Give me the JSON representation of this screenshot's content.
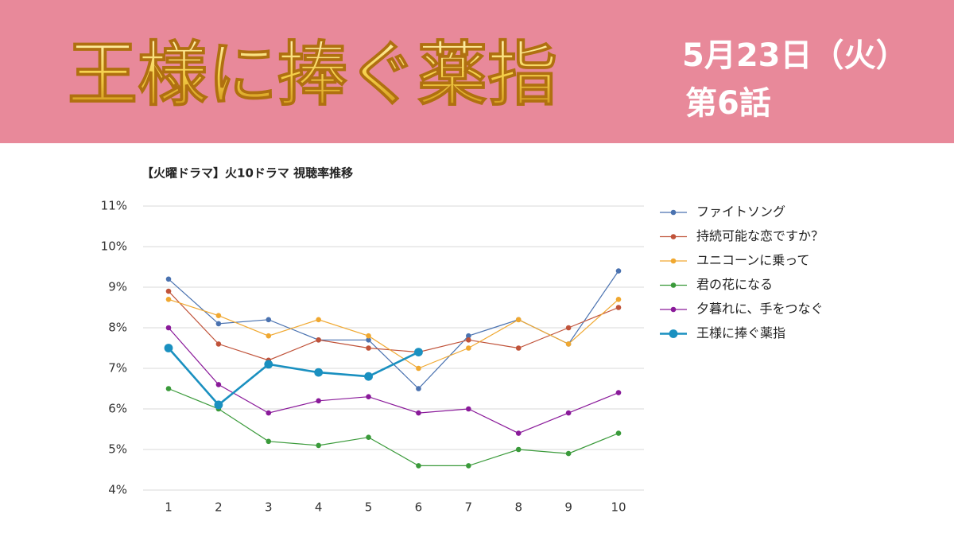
{
  "header": {
    "title": "王様に捧ぐ薬指",
    "date": "5月23日（火）",
    "episode": "第6話"
  },
  "chart_data": {
    "type": "line",
    "title": "【火曜ドラマ】火10ドラマ 視聴率推移",
    "categories": [
      "1",
      "2",
      "3",
      "4",
      "5",
      "6",
      "7",
      "8",
      "9",
      "10"
    ],
    "ylim": [
      4,
      11
    ],
    "yticks": [
      {
        "value": 4,
        "label": "4%"
      },
      {
        "value": 5,
        "label": "5%"
      },
      {
        "value": 6,
        "label": "6%"
      },
      {
        "value": 7,
        "label": "7%"
      },
      {
        "value": 8,
        "label": "8%"
      },
      {
        "value": 9,
        "label": "9%"
      },
      {
        "value": 10,
        "label": "10%"
      },
      {
        "value": 11,
        "label": "11%"
      }
    ],
    "grid": true,
    "legend": "right",
    "series": [
      {
        "name": "ファイトソング",
        "color": "#4a72b0",
        "line_width": 1.2,
        "values": [
          9.2,
          8.1,
          8.2,
          7.7,
          7.7,
          6.5,
          7.8,
          8.2,
          7.6,
          9.4
        ]
      },
      {
        "name": "持続可能な恋ですか？",
        "color": "#c0533a",
        "line_width": 1.2,
        "values": [
          8.9,
          7.6,
          7.2,
          7.7,
          7.5,
          7.4,
          7.7,
          7.5,
          8.0,
          8.5
        ]
      },
      {
        "name": "ユニコーンに乗って",
        "color": "#f0a830",
        "line_width": 1.2,
        "values": [
          8.7,
          8.3,
          7.8,
          8.2,
          7.8,
          7.0,
          7.5,
          8.2,
          7.6,
          8.7
        ]
      },
      {
        "name": "君の花になる",
        "color": "#3a9a3a",
        "line_width": 1.2,
        "values": [
          6.5,
          6.0,
          5.2,
          5.1,
          5.3,
          4.6,
          4.6,
          5.0,
          4.9,
          5.4
        ]
      },
      {
        "name": "夕暮れに、手をつなぐ",
        "color": "#8a1a9a",
        "line_width": 1.2,
        "values": [
          8.0,
          6.6,
          5.9,
          6.2,
          6.3,
          5.9,
          6.0,
          5.4,
          5.9,
          6.4
        ]
      },
      {
        "name": "王様に捧ぐ薬指",
        "color": "#1a90c0",
        "line_width": 2.6,
        "values": [
          7.5,
          6.1,
          7.1,
          6.9,
          6.8,
          7.4,
          null,
          null,
          null,
          null
        ]
      }
    ]
  }
}
